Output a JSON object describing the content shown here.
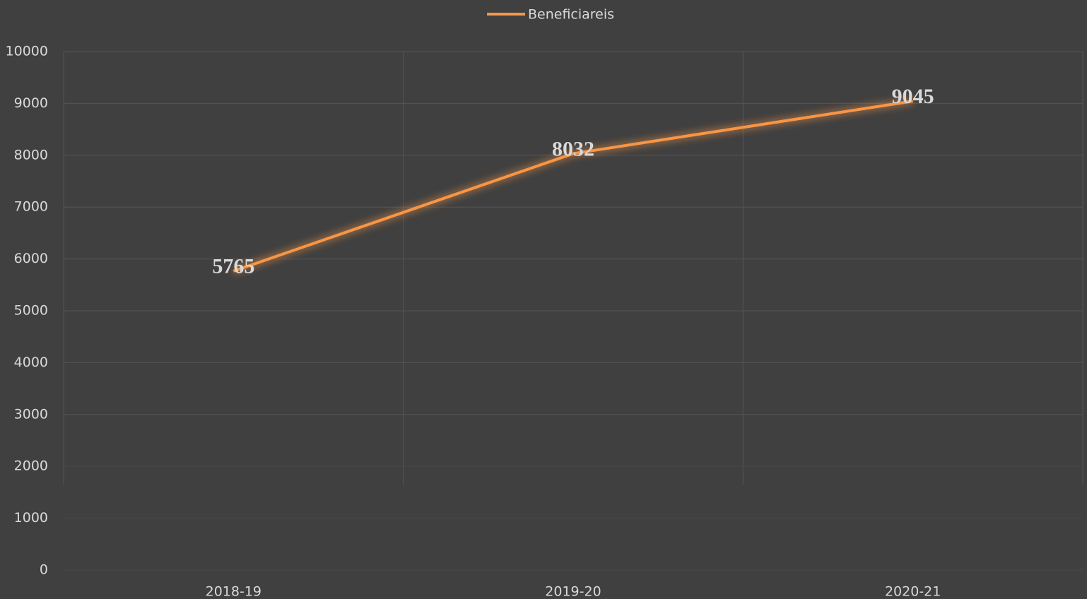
{
  "chart_data": {
    "type": "line",
    "categories": [
      "2018-19",
      "2019-20",
      "2020-21"
    ],
    "series": [
      {
        "name": "Beneficiareis",
        "color": "#f79646",
        "values": [
          5765,
          8032,
          9045
        ]
      }
    ],
    "ylim": [
      0,
      10000
    ],
    "yticks": [
      0,
      1000,
      2000,
      3000,
      4000,
      5000,
      6000,
      7000,
      8000,
      9000,
      10000
    ],
    "grid": true,
    "legend": "top"
  }
}
